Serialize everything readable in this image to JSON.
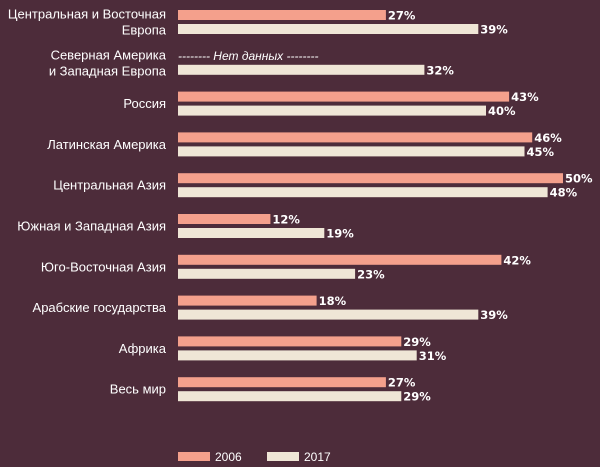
{
  "chart_data": {
    "type": "bar",
    "orientation": "horizontal",
    "categories": [
      [
        "Центральная и Восточная",
        "Европа"
      ],
      [
        "Северная Америка",
        "и Западная Европа"
      ],
      [
        "Россия"
      ],
      [
        "Латинская Америка"
      ],
      [
        "Центральная Азия"
      ],
      [
        "Южная и Западная Азия"
      ],
      [
        "Юго-Восточная Азия"
      ],
      [
        "Арабские государства"
      ],
      [
        "Африка"
      ],
      [
        "Весь мир"
      ]
    ],
    "series": [
      {
        "name": "2006",
        "color": "#f4a08c",
        "values": [
          27,
          null,
          43,
          46,
          50,
          12,
          42,
          18,
          29,
          27
        ]
      },
      {
        "name": "2017",
        "color": "#efe6d6",
        "values": [
          39,
          32,
          40,
          45,
          48,
          19,
          23,
          39,
          31,
          29
        ]
      }
    ],
    "value_suffix": "%",
    "no_data_label": "-------- Нет данных --------",
    "xlim": [
      0,
      50
    ],
    "grid": false,
    "legend_position": "bottom",
    "background": "#4d2c3a",
    "label_color": "#ffffff"
  }
}
